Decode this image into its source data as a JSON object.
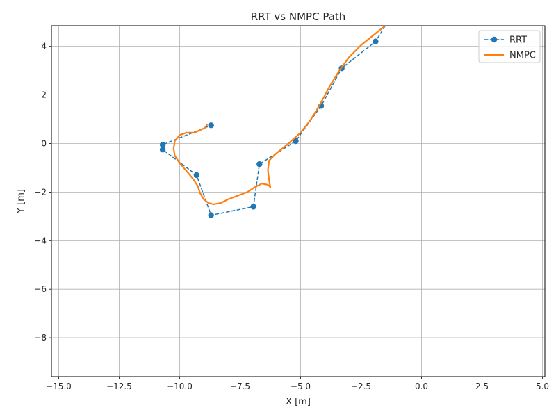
{
  "chart_data": {
    "type": "line",
    "title": "RRT vs NMPC Path",
    "xlabel": "X [m]",
    "ylabel": "Y [m]",
    "xlim": [
      -15.3,
      5.1
    ],
    "ylim": [
      -9.6,
      4.85
    ],
    "xticks": [
      -15.0,
      -12.5,
      -10.0,
      -7.5,
      -5.0,
      -2.5,
      0.0,
      2.5,
      5.0
    ],
    "xtick_labels": [
      "−15.0",
      "−12.5",
      "−10.0",
      "−7.5",
      "−5.0",
      "−2.5",
      "0.0",
      "2.5",
      "5.0"
    ],
    "yticks": [
      -8,
      -6,
      -4,
      -2,
      0,
      2,
      4
    ],
    "ytick_labels": [
      "−8",
      "−6",
      "−4",
      "−2",
      "0",
      "2",
      "4"
    ],
    "grid": true,
    "legend_position": "top-right",
    "series": [
      {
        "name": "RRT",
        "style": "dashed-with-markers",
        "color": "#1f77b4",
        "x": [
          -1.5,
          -1.9,
          -3.3,
          -4.15,
          -5.2,
          -6.7,
          -6.95,
          -8.7,
          -9.3,
          -10.7,
          -10.7,
          -8.7
        ],
        "y": [
          4.85,
          4.2,
          3.1,
          1.55,
          0.1,
          -0.85,
          -2.6,
          -2.95,
          -1.3,
          -0.25,
          -0.05,
          0.75
        ]
      },
      {
        "name": "NMPC",
        "style": "solid",
        "color": "#ff7f0e",
        "x": [
          -1.5,
          -2.0,
          -2.5,
          -3.0,
          -3.4,
          -3.8,
          -4.2,
          -4.6,
          -5.0,
          -5.5,
          -6.0,
          -6.3,
          -6.35,
          -6.3,
          -6.25,
          -6.35,
          -6.6,
          -6.9,
          -7.2,
          -7.6,
          -8.0,
          -8.3,
          -8.6,
          -8.8,
          -9.0,
          -9.15,
          -9.25,
          -9.45,
          -9.7,
          -10.0,
          -10.2,
          -10.25,
          -10.2,
          -10.0,
          -9.7,
          -9.4,
          -9.15,
          -8.95,
          -8.85
        ],
        "y": [
          4.85,
          4.45,
          4.05,
          3.55,
          3.0,
          2.35,
          1.6,
          0.95,
          0.45,
          0.0,
          -0.4,
          -0.7,
          -1.1,
          -1.5,
          -1.8,
          -1.7,
          -1.65,
          -1.8,
          -2.0,
          -2.15,
          -2.3,
          -2.45,
          -2.5,
          -2.45,
          -2.3,
          -2.05,
          -1.75,
          -1.45,
          -1.15,
          -0.8,
          -0.5,
          -0.2,
          0.1,
          0.35,
          0.45,
          0.45,
          0.55,
          0.65,
          0.8
        ]
      }
    ]
  }
}
